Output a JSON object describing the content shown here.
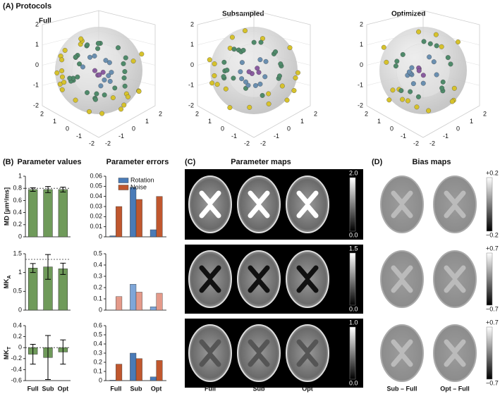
{
  "protocols": {
    "label": "(A) Protocols",
    "plots": [
      {
        "title": "Full",
        "vticks": [
          2,
          1,
          0,
          -1,
          -2
        ],
        "lticks": [
          2,
          1,
          0,
          -1,
          -2
        ],
        "rticks": [
          -2,
          -1,
          0,
          1,
          2
        ]
      },
      {
        "title": "Subsampled",
        "vticks": [
          2,
          1,
          0,
          -1,
          -2
        ],
        "lticks": [
          2,
          1,
          0,
          -1,
          -2
        ],
        "rticks": [
          -2,
          -1,
          0,
          1,
          2
        ]
      },
      {
        "title": "Optimized",
        "vticks": [
          2,
          1,
          0,
          -1,
          -2
        ],
        "lticks": [
          2,
          1,
          0,
          -1,
          -2
        ],
        "rticks": [
          -2,
          -1,
          0,
          1,
          2
        ]
      }
    ]
  },
  "panel_b": {
    "label": "(B)",
    "values_title": "Parameter values",
    "errors_title": "Parameter errors"
  },
  "chart_data": [
    {
      "type": "bar",
      "ylabel": "MD [µm²/ms]",
      "categories": [
        null,
        null,
        null
      ],
      "values": [
        0.78,
        0.78,
        0.78
      ],
      "errors": [
        0.03,
        0.05,
        0.04
      ],
      "color": "#6f9a5a",
      "reference_line": 0.8,
      "ylim": [
        0,
        1
      ],
      "yticks": [
        0,
        0.2,
        0.4,
        0.6,
        0.8,
        1
      ]
    },
    {
      "type": "bar",
      "categories": [
        null,
        null,
        null
      ],
      "series": [
        {
          "name": "Rotation",
          "color": "#4a7bb7",
          "values": [
            0.001,
            0.049,
            0.007
          ]
        },
        {
          "name": "Noise",
          "color": "#c0572e",
          "values": [
            0.03,
            0.037,
            0.04
          ]
        }
      ],
      "legend": "upper-left",
      "ylim": [
        0,
        0.06
      ],
      "yticks": [
        0,
        0.01,
        0.02,
        0.03,
        0.04,
        0.05,
        0.06
      ]
    },
    {
      "type": "bar",
      "ylabel": {
        "main": "MK",
        "sub": "A"
      },
      "categories": [
        null,
        null,
        null
      ],
      "values": [
        1.12,
        1.15,
        1.1
      ],
      "errors": [
        0.12,
        0.33,
        0.15
      ],
      "color": "#6f9a5a",
      "reference_line": 1.35,
      "ylim": [
        0,
        1.5
      ],
      "yticks": [
        0,
        0.5,
        1,
        1.5
      ]
    },
    {
      "type": "bar",
      "categories": [
        null,
        null,
        null
      ],
      "series": [
        {
          "color": "#7ea6d8",
          "values": [
            0.0,
            0.23,
            0.03
          ]
        },
        {
          "color": "#e49a8a",
          "values": [
            0.12,
            0.16,
            0.15
          ]
        }
      ],
      "ylim": [
        0,
        0.5
      ],
      "yticks": [
        0,
        0.1,
        0.2,
        0.3,
        0.4,
        0.5
      ]
    },
    {
      "type": "bar",
      "ylabel": {
        "main": "MK",
        "sub": "T"
      },
      "categories": [
        "Full",
        "Sub",
        "Opt"
      ],
      "values": [
        -0.12,
        -0.18,
        -0.08
      ],
      "errors": [
        0.18,
        0.4,
        0.22
      ],
      "color": "#6f9a5a",
      "reference_line": 0,
      "ylim": [
        -0.6,
        0.4
      ],
      "yticks": [
        -0.6,
        -0.4,
        -0.2,
        0,
        0.2,
        0.4
      ]
    },
    {
      "type": "bar",
      "categories": [
        "Full",
        "Sub",
        "Opt"
      ],
      "series": [
        {
          "color": "#4a7bb7",
          "values": [
            0.005,
            0.3,
            0.04
          ]
        },
        {
          "color": "#c0572e",
          "values": [
            0.18,
            0.24,
            0.22
          ]
        }
      ],
      "ylim": [
        0,
        0.6
      ],
      "yticks": [
        0,
        0.1,
        0.2,
        0.3,
        0.4,
        0.5,
        0.6
      ]
    }
  ],
  "parameter_maps": {
    "label": "(C)",
    "title": "Parameter maps",
    "columns": [
      "Full",
      "Sub",
      "Opt"
    ],
    "colorbars": [
      [
        "2.0",
        "0.0"
      ],
      [
        "1.5",
        "0.0"
      ],
      [
        "1.0",
        "0.0"
      ]
    ]
  },
  "bias_maps": {
    "label": "(D)",
    "title": "Bias maps",
    "columns": [
      "Sub – Full",
      "Opt – Full"
    ],
    "colorbars": [
      [
        "+0.2",
        "−0.2"
      ],
      [
        "+0.7",
        "−0.7"
      ],
      [
        "+0.7",
        "−0.7"
      ]
    ]
  }
}
